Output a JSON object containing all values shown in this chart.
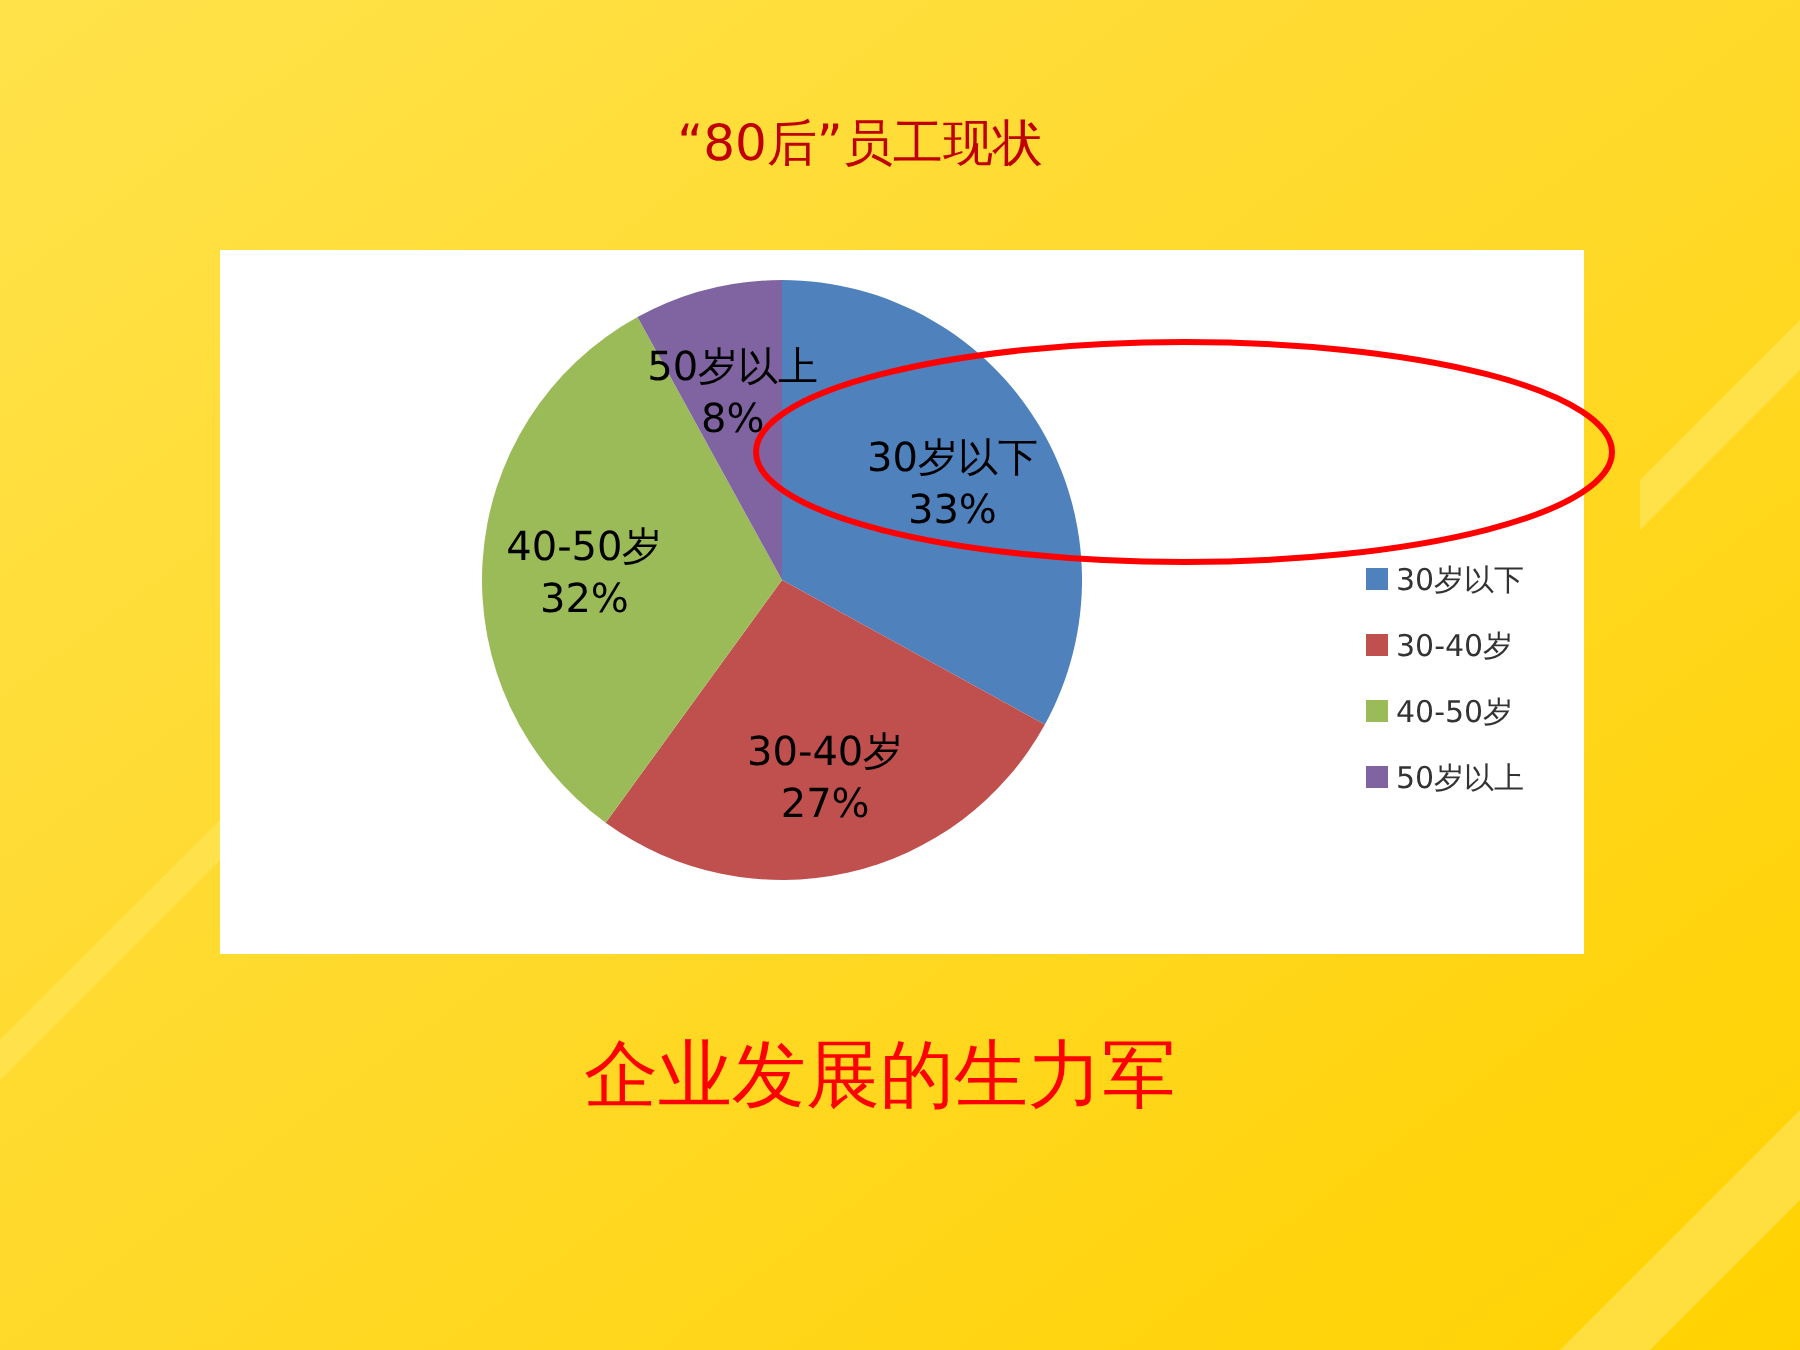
{
  "chart_data": {
    "type": "pie",
    "title": "“80后”员工现状",
    "categories": [
      "30岁以下",
      "30-40岁",
      "40-50岁",
      "50岁以上"
    ],
    "values": [
      33,
      27,
      32,
      8
    ],
    "colors": [
      "#4f81bd",
      "#c0504d",
      "#9bbb59",
      "#8064a2"
    ],
    "value_labels": [
      "33%",
      "27%",
      "32%",
      "8%"
    ],
    "legend": "right",
    "annotations": [
      "企业发展的生力军"
    ]
  }
}
